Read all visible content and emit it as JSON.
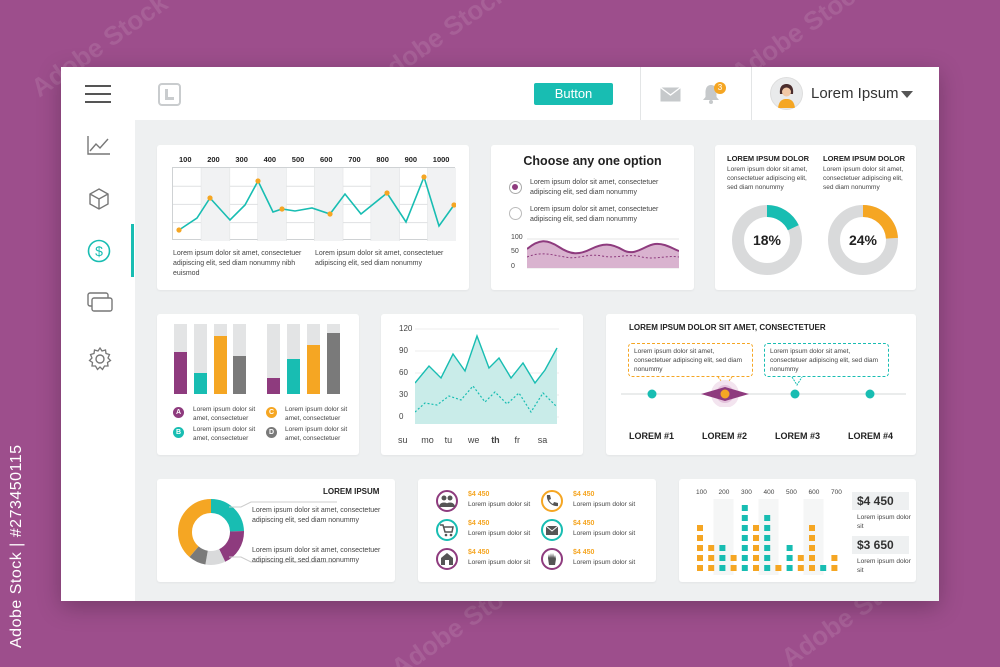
{
  "watermark": {
    "text": "Adobe Stock",
    "side_caption": "Adobe Stock | #273450115"
  },
  "topbar": {
    "button_label": "Button",
    "notification_count": "3",
    "user_name": "Lorem Ipsum"
  },
  "sidebar": {
    "items": [
      {
        "icon": "line-chart-icon"
      },
      {
        "icon": "cube-icon"
      },
      {
        "icon": "dollar-icon",
        "active": true
      },
      {
        "icon": "cards-icon"
      },
      {
        "icon": "gear-icon"
      }
    ]
  },
  "colors": {
    "teal": "#18bdb2",
    "orange": "#f5a623",
    "purple": "#8e3b7e",
    "gray": "#7a7a7a"
  },
  "card1": {
    "col_labels": [
      "100",
      "200",
      "300",
      "400",
      "500",
      "600",
      "700",
      "800",
      "900",
      "1000"
    ],
    "text_left": "Lorem ipsum dolor sit amet, consectetuer adipiscing elit, sed diam nonummy nibh euismod",
    "text_right": "Lorem ipsum dolor sit amet, consectetuer adipiscing elit, sed diam nonummy"
  },
  "card2": {
    "title": "Choose any one option",
    "opt1": "Lorem ipsum dolor sit amet, consectetuer adipiscing elit, sed diam nonummy",
    "opt2": "Lorem ipsum dolor sit amet, consectetuer adipiscing elit, sed diam nonummy",
    "y_labels": [
      "100",
      "50",
      "0"
    ]
  },
  "card3": {
    "left_title": "LOREM IPSUM DOLOR",
    "left_text": "Lorem ipsum dolor sit amet, consectetuer adipiscing elit, sed diam nonummy",
    "left_pct": "18%",
    "right_title": "LOREM IPSUM DOLOR",
    "right_text": "Lorem ipsum dolor sit amet, consectetuer adipiscing elit, sed diam nonummy",
    "right_pct": "24%"
  },
  "card4": {
    "legend": [
      {
        "letter": "A",
        "text": "Lorem ipsum dolor sit amet, consectetuer",
        "color": "#8e3b7e"
      },
      {
        "letter": "B",
        "text": "Lorem ipsum dolor sit amet, consectetuer",
        "color": "#18bdb2"
      },
      {
        "letter": "C",
        "text": "Lorem ipsum dolor sit amet, consectetuer",
        "color": "#f5a623"
      },
      {
        "letter": "D",
        "text": "Lorem ipsum dolor sit amet, consectetuer",
        "color": "#7a7a7a"
      }
    ]
  },
  "card5": {
    "y_labels": [
      "120",
      "90",
      "60",
      "30",
      "0"
    ],
    "x_labels": [
      "su",
      "mo",
      "tu",
      "we",
      "th",
      "fr",
      "sa"
    ]
  },
  "card6": {
    "title": "LOREM IPSUM DOLOR SIT AMET, CONSECTETUER",
    "bubble_left": "Lorem ipsum dolor sit amet, consectetuer adipiscing elit, sed diam nonummy",
    "bubble_right": "Lorem ipsum dolor sit amet, consectetuer adipiscing elit, sed diam nonummy",
    "steps": [
      "LOREM #1",
      "LOREM #2",
      "LOREM #3",
      "LOREM #4"
    ]
  },
  "card7": {
    "title": "LOREM IPSUM",
    "text1": "Lorem ipsum dolor sit amet, consectetuer adipiscing elit, sed diam nonummy",
    "text2": "Lorem ipsum dolor sit amet, consectetuer adipiscing elit, sed diam nonummy"
  },
  "card8": {
    "items": [
      {
        "icon": "users-icon",
        "value": "$4 450",
        "text": "Lorem ipsum dolor sit"
      },
      {
        "icon": "phone-icon",
        "value": "$4 450",
        "text": "Lorem ipsum dolor sit"
      },
      {
        "icon": "cart-icon",
        "value": "$4 450",
        "text": "Lorem ipsum dolor sit"
      },
      {
        "icon": "mail-icon",
        "value": "$4 450",
        "text": "Lorem ipsum dolor sit"
      },
      {
        "icon": "home-icon",
        "value": "$4 450",
        "text": "Lorem ipsum dolor sit"
      },
      {
        "icon": "hand-icon",
        "value": "$4 450",
        "text": "Lorem ipsum dolor sit"
      }
    ]
  },
  "card9": {
    "col_labels": [
      "100",
      "200",
      "300",
      "400",
      "500",
      "600",
      "700"
    ],
    "value1": "$4 450",
    "text1": "Lorem ipsum dolor sit",
    "value2": "$3 650",
    "text2": "Lorem ipsum dolor sit"
  }
}
